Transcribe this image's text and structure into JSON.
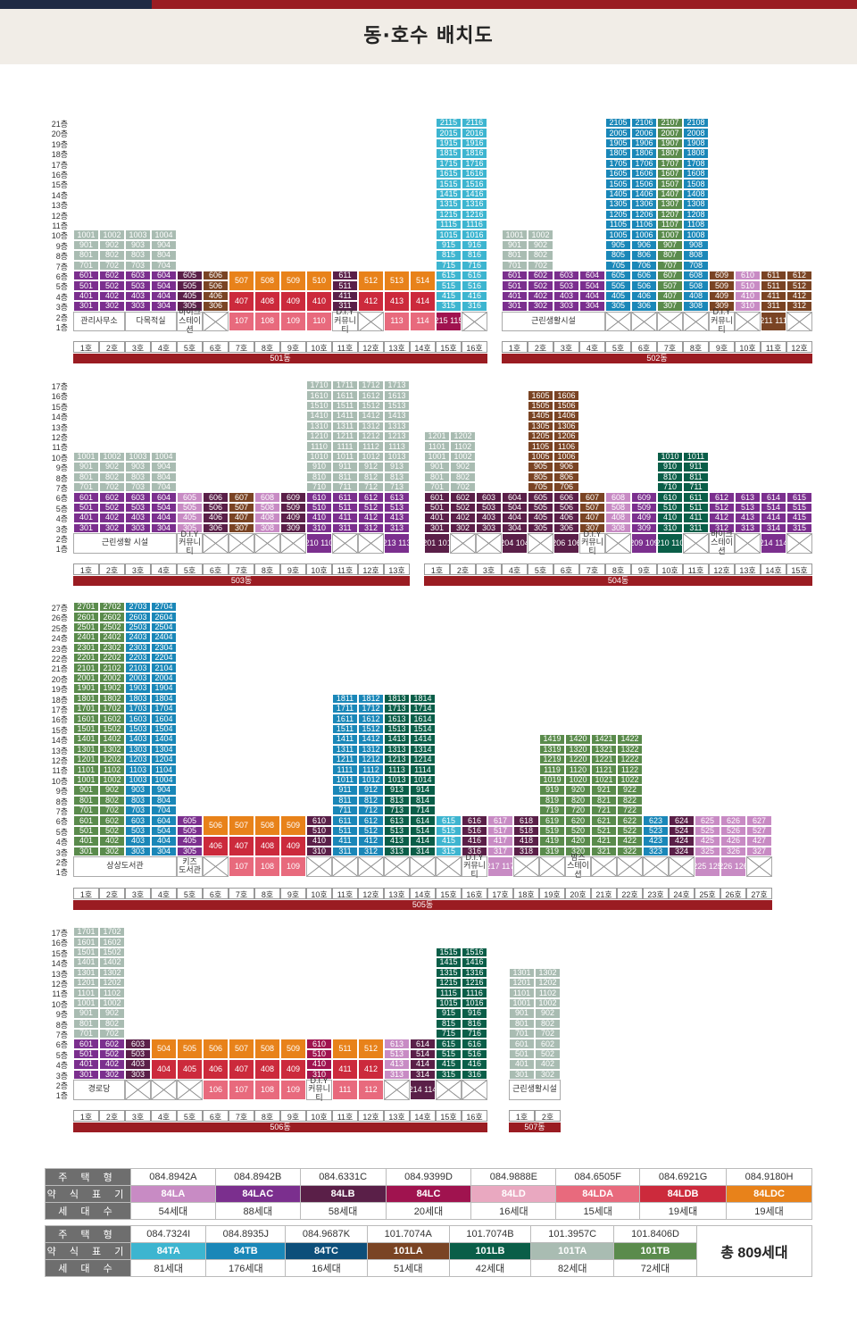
{
  "title": "동·호수 배치도",
  "colors": {
    "LA": "#c88bc4",
    "LAC": "#7b2f8e",
    "LB": "#5a1f48",
    "LC": "#a0134f",
    "LD": "#e9a8c0",
    "LDA": "#e86a7d",
    "LDB": "#cc2a3c",
    "LDC": "#e8821a",
    "TA": "#3db5d0",
    "TB": "#1a87b8",
    "TC": "#0d4f7a",
    "LA101": "#7a4424",
    "LB101": "#0a5e48",
    "TA101": "#a9bcb2",
    "TB101": "#5a8b4c"
  },
  "buildings": [
    {
      "name": "501동",
      "units": [
        "1호",
        "2호",
        "3호",
        "4호",
        "5호",
        "6호",
        "7호",
        "8호",
        "9호",
        "10호",
        "11호",
        "12호",
        "13호",
        "14호",
        "15호",
        "16호"
      ]
    },
    {
      "name": "502동",
      "units": [
        "1호",
        "2호",
        "3호",
        "4호",
        "5호",
        "6호",
        "7호",
        "8호",
        "9호",
        "10호",
        "11호",
        "12호"
      ]
    },
    {
      "name": "503동",
      "units": [
        "1호",
        "2호",
        "3호",
        "4호",
        "5호",
        "6호",
        "7호",
        "8호",
        "9호",
        "10호",
        "11호",
        "12호",
        "13호"
      ]
    },
    {
      "name": "504동",
      "units": [
        "1호",
        "2호",
        "3호",
        "4호",
        "5호",
        "6호",
        "7호",
        "8호",
        "9호",
        "10호",
        "11호",
        "12호",
        "13호",
        "14호",
        "15호"
      ]
    },
    {
      "name": "505동",
      "units": [
        "1호",
        "2호",
        "3호",
        "4호",
        "5호",
        "6호",
        "7호",
        "8호",
        "9호",
        "10호",
        "11호",
        "12호",
        "13호",
        "14호",
        "15호",
        "16호",
        "17호",
        "18호",
        "19호",
        "20호",
        "21호",
        "22호",
        "23호",
        "24호",
        "25호",
        "26호",
        "27호"
      ]
    },
    {
      "name": "506동",
      "units": [
        "1호",
        "2호",
        "3호",
        "4호",
        "5호",
        "6호",
        "7호",
        "8호",
        "9호",
        "10호",
        "11호",
        "12호",
        "13호",
        "14호",
        "15호",
        "16호"
      ]
    },
    {
      "name": "507동",
      "units": [
        "1호",
        "2호"
      ]
    }
  ],
  "facilities": {
    "b501": [
      "관리사무소",
      "다목적실",
      "바이크 스테이션",
      "D.I.Y 커뮤니티"
    ],
    "b502": [
      "근린생활시설",
      "D.I.Y 커뮤니티"
    ],
    "b503": [
      "근린생활 시설",
      "D.I.Y 커뮤니티"
    ],
    "b504": [
      "D.I.Y 커뮤니티",
      "바이크 스테이션"
    ],
    "b505": [
      "상상도서관",
      "키즈 도서관",
      "D.I.Y 커뮤니티",
      "맘스 스테이션"
    ],
    "b506": [
      "경로당",
      "D.I.Y 커뮤니티"
    ],
    "b507": [
      "근린생활시설"
    ]
  },
  "legend": {
    "row_headers": [
      "주 택 형",
      "약 식 표 기",
      "세 대 수"
    ],
    "table1": {
      "types": [
        "084.8942A",
        "084.8942B",
        "084.6331C",
        "084.9399D",
        "084.9888E",
        "084.6505F",
        "084.6921G",
        "084.9180H"
      ],
      "codes": [
        "84LA",
        "84LAC",
        "84LB",
        "84LC",
        "84LD",
        "84LDA",
        "84LDB",
        "84LDC"
      ],
      "counts": [
        "54세대",
        "88세대",
        "58세대",
        "20세대",
        "16세대",
        "15세대",
        "19세대",
        "19세대"
      ]
    },
    "table2": {
      "types": [
        "084.7324I",
        "084.8935J",
        "084.9687K",
        "101.7074A",
        "101.7074B",
        "101.3957C",
        "101.8406D"
      ],
      "codes": [
        "84TA",
        "84TB",
        "84TC",
        "101LA",
        "101LB",
        "101TA",
        "101TB"
      ],
      "counts": [
        "81세대",
        "176세대",
        "16세대",
        "51세대",
        "42세대",
        "82세대",
        "72세대"
      ]
    },
    "total": "총 809세대"
  }
}
